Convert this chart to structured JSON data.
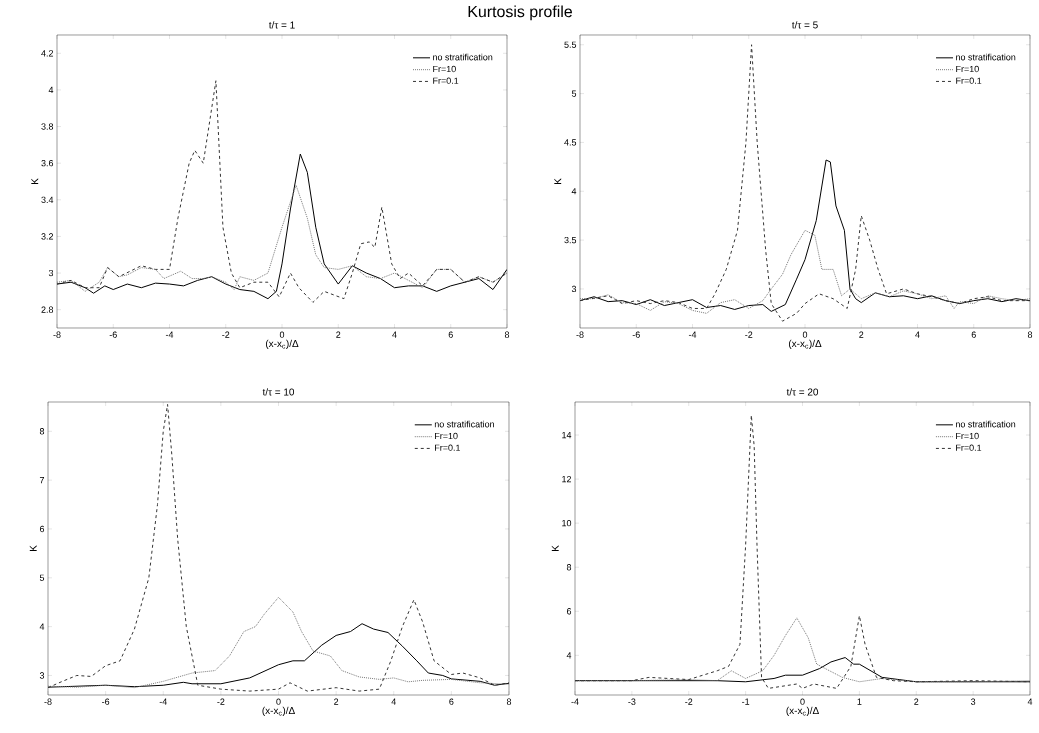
{
  "chart_data": [
    {
      "type": "line",
      "title": "t/τ = 1",
      "xlabel": "(x-x$_{c}$)/Δ",
      "ylabel": "K",
      "annotations": [
        "Kurtosis profile"
      ],
      "xlim": [
        -8,
        8
      ],
      "ylim": [
        2.7,
        4.3
      ],
      "xticks": [
        -8,
        -6,
        -4,
        -2,
        0,
        2,
        4,
        6,
        8
      ],
      "yticks": [
        2.8,
        3,
        3.2,
        3.4,
        3.6,
        3.8,
        4,
        4.2
      ],
      "legend": "top right",
      "series": [
        {
          "name": "no stratification",
          "color": "#000000",
          "line_style": "solid",
          "x": [
            -8,
            -7.5,
            -7,
            -6.7,
            -6.3,
            -6,
            -5.5,
            -5,
            -4.5,
            -4,
            -3.5,
            -3,
            -2.5,
            -2,
            -1.5,
            -1,
            -0.5,
            -0.2,
            0,
            0.3,
            0.65,
            0.9,
            1.2,
            1.5,
            2,
            2.5,
            3,
            3.5,
            4,
            4.5,
            5,
            5.5,
            6,
            6.5,
            7,
            7.5,
            8
          ],
          "values": [
            2.94,
            2.95,
            2.92,
            2.89,
            2.93,
            2.91,
            2.94,
            2.92,
            2.945,
            2.94,
            2.93,
            2.96,
            2.98,
            2.94,
            2.91,
            2.9,
            2.86,
            2.9,
            3.05,
            3.35,
            3.65,
            3.55,
            3.25,
            3.05,
            2.94,
            3.04,
            3.0,
            2.97,
            2.92,
            2.93,
            2.93,
            2.9,
            2.93,
            2.95,
            2.97,
            2.91,
            3.02
          ]
        },
        {
          "name": "Fr=10",
          "color": "#777777",
          "line_style": "dotted",
          "x": [
            -8,
            -7.5,
            -7,
            -6.5,
            -6.2,
            -5.8,
            -5.5,
            -5,
            -4.5,
            -4.2,
            -3.6,
            -3.2,
            -2.8,
            -2.5,
            -2,
            -1.7,
            -1.5,
            -1,
            -0.5,
            0,
            0.5,
            0.9,
            1.2,
            1.5,
            2,
            2.5,
            3,
            3.5,
            4,
            4.5,
            5,
            5.5,
            6,
            6.5,
            7,
            7.5,
            8
          ],
          "values": [
            2.95,
            2.96,
            2.9,
            2.95,
            3.03,
            2.98,
            2.99,
            3.03,
            3.02,
            2.97,
            3.01,
            2.97,
            2.97,
            2.98,
            2.95,
            2.91,
            2.98,
            2.96,
            3.0,
            3.25,
            3.48,
            3.3,
            3.1,
            3.03,
            3.02,
            3.04,
            2.98,
            2.97,
            3.0,
            2.96,
            2.92,
            3.02,
            3.02,
            2.95,
            2.98,
            2.95,
            3.0
          ]
        },
        {
          "name": "Fr=0.1",
          "color": "#333333",
          "line_style": "dashed",
          "x": [
            -8,
            -7.5,
            -7,
            -6.5,
            -6.2,
            -5.8,
            -5,
            -4.5,
            -4,
            -3.7,
            -3.3,
            -3.1,
            -2.8,
            -2.5,
            -2.35,
            -2.1,
            -1.8,
            -1.5,
            -1,
            -0.5,
            -0.1,
            0.3,
            0.6,
            1.1,
            1.5,
            2.2,
            2.5,
            2.8,
            3.1,
            3.3,
            3.55,
            3.9,
            4.2,
            4.5,
            5,
            5.5,
            6,
            6.5,
            7,
            7.5,
            8
          ],
          "values": [
            2.94,
            2.96,
            2.92,
            2.92,
            3.03,
            2.98,
            3.04,
            3.02,
            3.02,
            3.3,
            3.6,
            3.67,
            3.6,
            3.9,
            4.05,
            3.25,
            3.0,
            2.92,
            2.95,
            2.95,
            2.87,
            3.0,
            2.92,
            2.84,
            2.9,
            2.86,
            3.0,
            3.16,
            3.17,
            3.14,
            3.36,
            3.05,
            2.97,
            3.0,
            2.93,
            3.02,
            3.02,
            2.95,
            2.98,
            2.95,
            3.0
          ]
        }
      ]
    },
    {
      "type": "line",
      "title": "t/τ = 5",
      "xlabel": "(x-x$_{c}$)/Δ",
      "ylabel": "K",
      "xlim": [
        -8,
        8
      ],
      "ylim": [
        2.6,
        5.6
      ],
      "xticks": [
        -8,
        -6,
        -4,
        -2,
        0,
        2,
        4,
        6,
        8
      ],
      "yticks": [
        3,
        3.5,
        4,
        4.5,
        5,
        5.5
      ],
      "legend": "top right",
      "series": [
        {
          "name": "no stratification",
          "color": "#000000",
          "line_style": "solid",
          "x": [
            -8,
            -7.5,
            -7,
            -6.5,
            -6,
            -5.5,
            -5,
            -4.5,
            -4,
            -3.5,
            -3,
            -2.5,
            -2,
            -1.5,
            -1.2,
            -0.7,
            -0.3,
            0,
            0.4,
            0.75,
            0.9,
            1.1,
            1.4,
            1.6,
            1.8,
            2,
            2.5,
            3,
            3.5,
            4,
            4.5,
            5,
            5.5,
            6,
            6.5,
            7,
            7.5,
            8
          ],
          "values": [
            2.88,
            2.92,
            2.87,
            2.88,
            2.84,
            2.89,
            2.83,
            2.86,
            2.89,
            2.81,
            2.83,
            2.79,
            2.83,
            2.84,
            2.77,
            2.84,
            3.1,
            3.3,
            3.7,
            4.32,
            4.3,
            3.85,
            3.6,
            3.0,
            2.9,
            2.86,
            2.96,
            2.92,
            2.93,
            2.9,
            2.93,
            2.88,
            2.85,
            2.88,
            2.9,
            2.87,
            2.9,
            2.88
          ]
        },
        {
          "name": "Fr=10",
          "color": "#777777",
          "line_style": "dotted",
          "x": [
            -8,
            -7.5,
            -7,
            -6.5,
            -6,
            -5.5,
            -5,
            -4.5,
            -4,
            -3.5,
            -3,
            -2.5,
            -2,
            -1.5,
            -1.2,
            -0.8,
            -0.5,
            0,
            0.35,
            0.6,
            1,
            1.3,
            1.6,
            2,
            2.5,
            3,
            3.5,
            4,
            4.5,
            5,
            5.3,
            5.5,
            6,
            6.5,
            7,
            7.5,
            8
          ],
          "values": [
            2.9,
            2.9,
            2.94,
            2.86,
            2.85,
            2.78,
            2.87,
            2.85,
            2.78,
            2.75,
            2.86,
            2.89,
            2.8,
            2.88,
            3.0,
            3.15,
            3.35,
            3.6,
            3.55,
            3.2,
            3.2,
            2.93,
            3.0,
            2.9,
            2.96,
            2.92,
            2.98,
            2.95,
            2.9,
            2.93,
            2.8,
            2.87,
            2.85,
            2.93,
            2.9,
            2.88,
            2.9
          ]
        },
        {
          "name": "Fr=0.1",
          "color": "#333333",
          "line_style": "dashed",
          "x": [
            -8,
            -7,
            -6.5,
            -6,
            -5.5,
            -5,
            -4.5,
            -4,
            -3.5,
            -3.2,
            -2.8,
            -2.4,
            -2.1,
            -1.9,
            -1.7,
            -1.4,
            -1.2,
            -0.8,
            -0.3,
            0,
            0.5,
            1,
            1.5,
            1.8,
            2,
            2.3,
            2.6,
            2.9,
            3.5,
            4,
            4.5,
            5,
            5.5,
            6,
            6.5,
            7,
            7.5,
            8
          ],
          "values": [
            2.88,
            2.93,
            2.85,
            2.88,
            2.85,
            2.88,
            2.86,
            2.8,
            2.8,
            2.95,
            3.2,
            3.6,
            4.5,
            5.5,
            4.5,
            3.4,
            2.85,
            2.67,
            2.75,
            2.85,
            2.95,
            2.9,
            2.8,
            3.2,
            3.75,
            3.5,
            3.2,
            2.95,
            3.0,
            2.95,
            2.92,
            2.88,
            2.85,
            2.9,
            2.92,
            2.88,
            2.88,
            2.88
          ]
        }
      ]
    },
    {
      "type": "line",
      "title": "t/τ = 10",
      "xlabel": "(x-x$_{c}$)/Δ",
      "ylabel": "K",
      "xlim": [
        -8,
        8
      ],
      "ylim": [
        2.6,
        8.6
      ],
      "xticks": [
        -8,
        -6,
        -4,
        -2,
        0,
        2,
        4,
        6,
        8
      ],
      "yticks": [
        3,
        4,
        5,
        6,
        7,
        8
      ],
      "legend": "top right",
      "series": [
        {
          "name": "no stratification",
          "color": "#000000",
          "line_style": "solid",
          "x": [
            -8,
            -7,
            -6,
            -5,
            -4,
            -3.3,
            -3,
            -2,
            -1,
            0,
            0.5,
            0.9,
            1.5,
            2,
            2.5,
            2.9,
            3.3,
            3.8,
            4.3,
            4.8,
            5.2,
            5.7,
            6,
            7,
            7.5,
            8
          ],
          "values": [
            2.76,
            2.78,
            2.8,
            2.77,
            2.8,
            2.86,
            2.83,
            2.83,
            2.95,
            3.22,
            3.3,
            3.3,
            3.62,
            3.82,
            3.9,
            4.06,
            3.95,
            3.88,
            3.6,
            3.3,
            3.05,
            3.0,
            2.93,
            2.88,
            2.8,
            2.84
          ]
        },
        {
          "name": "Fr=10",
          "color": "#777777",
          "line_style": "dotted",
          "x": [
            -8,
            -7,
            -6,
            -5,
            -4,
            -3,
            -2.2,
            -1.7,
            -1.2,
            -0.8,
            -0.5,
            0,
            0.5,
            0.8,
            1.2,
            1.8,
            2.2,
            2.8,
            3.5,
            4,
            4.5,
            5,
            6,
            7,
            8
          ],
          "values": [
            2.78,
            2.76,
            2.8,
            2.75,
            2.88,
            3.05,
            3.1,
            3.4,
            3.9,
            4.0,
            4.25,
            4.6,
            4.3,
            3.9,
            3.5,
            3.4,
            3.1,
            2.97,
            2.92,
            2.95,
            2.87,
            2.9,
            2.92,
            2.85,
            2.82
          ]
        },
        {
          "name": "Fr=0.1",
          "color": "#333333",
          "line_style": "dashed",
          "x": [
            -8,
            -7.5,
            -7,
            -6.5,
            -6,
            -5.5,
            -5,
            -4.5,
            -4.2,
            -4,
            -3.85,
            -3.7,
            -3.5,
            -3.2,
            -2.8,
            -2,
            -1,
            0,
            0.4,
            1,
            2,
            2.8,
            3.5,
            3.9,
            4.3,
            4.7,
            5,
            5.4,
            6,
            6.4,
            7,
            7.5,
            8
          ],
          "values": [
            2.75,
            2.88,
            3.0,
            2.98,
            3.2,
            3.3,
            3.95,
            5.0,
            6.5,
            8.0,
            8.55,
            7.5,
            5.8,
            4.0,
            2.8,
            2.72,
            2.68,
            2.72,
            2.85,
            2.68,
            2.75,
            2.68,
            2.72,
            3.3,
            4.0,
            4.55,
            4.1,
            3.3,
            3.02,
            3.05,
            2.95,
            2.8,
            2.85
          ]
        }
      ]
    },
    {
      "type": "line",
      "title": "t/τ = 20",
      "xlabel": "(x-x$_{c}$)/Δ",
      "ylabel": "K",
      "xlim": [
        -4,
        4
      ],
      "ylim": [
        2.2,
        15.5
      ],
      "xticks": [
        -4,
        -3,
        -2,
        -1,
        0,
        1,
        2,
        3,
        4
      ],
      "yticks": [
        4,
        6,
        8,
        10,
        12,
        14
      ],
      "legend": "top right",
      "series": [
        {
          "name": "no stratification",
          "color": "#000000",
          "line_style": "solid",
          "x": [
            -4,
            -3,
            -2,
            -1.5,
            -1,
            -0.5,
            -0.3,
            0,
            0.3,
            0.5,
            0.75,
            0.9,
            1,
            1.2,
            1.4,
            2,
            3,
            4
          ],
          "values": [
            2.85,
            2.85,
            2.85,
            2.85,
            2.8,
            2.95,
            3.1,
            3.1,
            3.4,
            3.7,
            3.9,
            3.6,
            3.6,
            3.3,
            3.0,
            2.8,
            2.8,
            2.8
          ]
        },
        {
          "name": "Fr=10",
          "color": "#777777",
          "line_style": "dotted",
          "x": [
            -4,
            -3,
            -2,
            -1.5,
            -1.25,
            -1,
            -0.7,
            -0.5,
            -0.3,
            -0.1,
            0.1,
            0.25,
            0.4,
            0.7,
            1,
            1.4,
            2,
            3,
            4
          ],
          "values": [
            2.85,
            2.85,
            2.9,
            2.85,
            3.3,
            2.95,
            3.3,
            4.0,
            4.9,
            5.7,
            4.8,
            3.6,
            3.4,
            3.0,
            2.8,
            2.95,
            2.8,
            2.8,
            2.85
          ]
        },
        {
          "name": "Fr=0.1",
          "color": "#333333",
          "line_style": "dashed",
          "x": [
            -4,
            -3,
            -2.7,
            -2,
            -1.5,
            -1.3,
            -1.1,
            -1.0,
            -0.9,
            -0.85,
            -0.8,
            -0.72,
            -0.6,
            -0.1,
            0,
            0.2,
            0.6,
            0.85,
            1.0,
            1.1,
            1.3,
            1.6,
            2,
            3,
            4
          ],
          "values": [
            2.85,
            2.85,
            3.0,
            2.9,
            3.3,
            3.5,
            4.5,
            9.0,
            14.9,
            13.5,
            9.0,
            3.0,
            2.5,
            2.7,
            2.5,
            2.7,
            2.5,
            3.5,
            5.8,
            4.5,
            3.0,
            2.85,
            2.8,
            2.85,
            2.8
          ]
        }
      ]
    }
  ]
}
